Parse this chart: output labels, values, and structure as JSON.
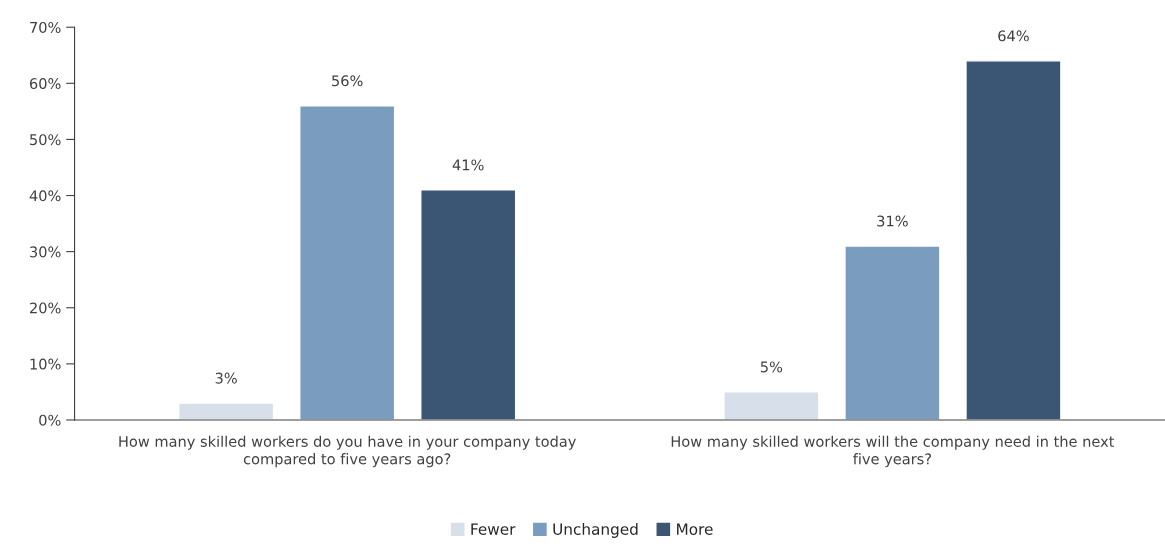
{
  "chart_data": {
    "type": "bar",
    "categories": [
      "How many skilled workers do you have in your company today compared to five years ago?",
      "How many skilled workers will the company need in the next five years?"
    ],
    "series": [
      {
        "name": "Fewer",
        "color": "#d6dfea",
        "values": [
          3,
          5
        ],
        "value_labels": [
          "3%",
          "5%"
        ]
      },
      {
        "name": "Unchanged",
        "color": "#7a9cbf",
        "values": [
          56,
          31
        ],
        "value_labels": [
          "56%",
          "31%"
        ]
      },
      {
        "name": "More",
        "color": "#3a5674",
        "values": [
          41,
          64
        ],
        "value_labels": [
          "41%",
          "64%"
        ]
      }
    ],
    "ylim": [
      0,
      70
    ],
    "yticks": [
      {
        "value": 0,
        "label": "0%"
      },
      {
        "value": 10,
        "label": "10%"
      },
      {
        "value": 20,
        "label": "20%"
      },
      {
        "value": 30,
        "label": "30%"
      },
      {
        "value": 40,
        "label": "40%"
      },
      {
        "value": 50,
        "label": "50%"
      },
      {
        "value": 60,
        "label": "60%"
      },
      {
        "value": 70,
        "label": "70%"
      }
    ],
    "grid": false,
    "legend": "bottom"
  }
}
